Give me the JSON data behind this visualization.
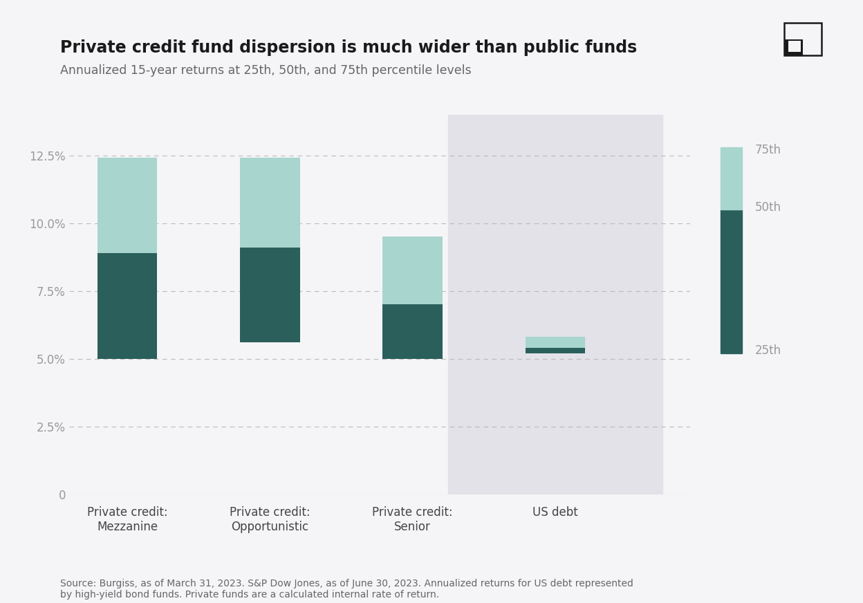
{
  "categories": [
    "Private credit:\nMezzanine",
    "Private credit:\nOpportunistic",
    "Private credit:\nSenior",
    "US debt"
  ],
  "p25": [
    5.0,
    5.6,
    5.0,
    5.2
  ],
  "p50": [
    8.9,
    9.1,
    7.0,
    5.4
  ],
  "p75": [
    12.4,
    12.4,
    9.5,
    5.8
  ],
  "color_dark": "#2A5F5B",
  "color_light": "#A8D5CE",
  "title": "Private credit fund dispersion is much wider than public funds",
  "subtitle": "Annualized 15-year returns at 25th, 50th, and 75th percentile levels",
  "yticks": [
    0,
    0.025,
    0.05,
    0.075,
    0.1,
    0.125
  ],
  "ytick_labels": [
    "0",
    "2.5%",
    "5.0%",
    "7.5%",
    "10.0%",
    "12.5%"
  ],
  "ylim": [
    0,
    0.14
  ],
  "source_text": "Source: Burgiss, as of March 31, 2023. S&P Dow Jones, as of June 30, 2023. Annualized returns for US debt represented\nby high-yield bond funds. Private funds are a calculated internal rate of return.",
  "background_color": "#F5F5F8",
  "us_debt_bg_color": "#E2E2E8",
  "legend_labels": [
    "75th",
    "50th",
    "25th"
  ]
}
